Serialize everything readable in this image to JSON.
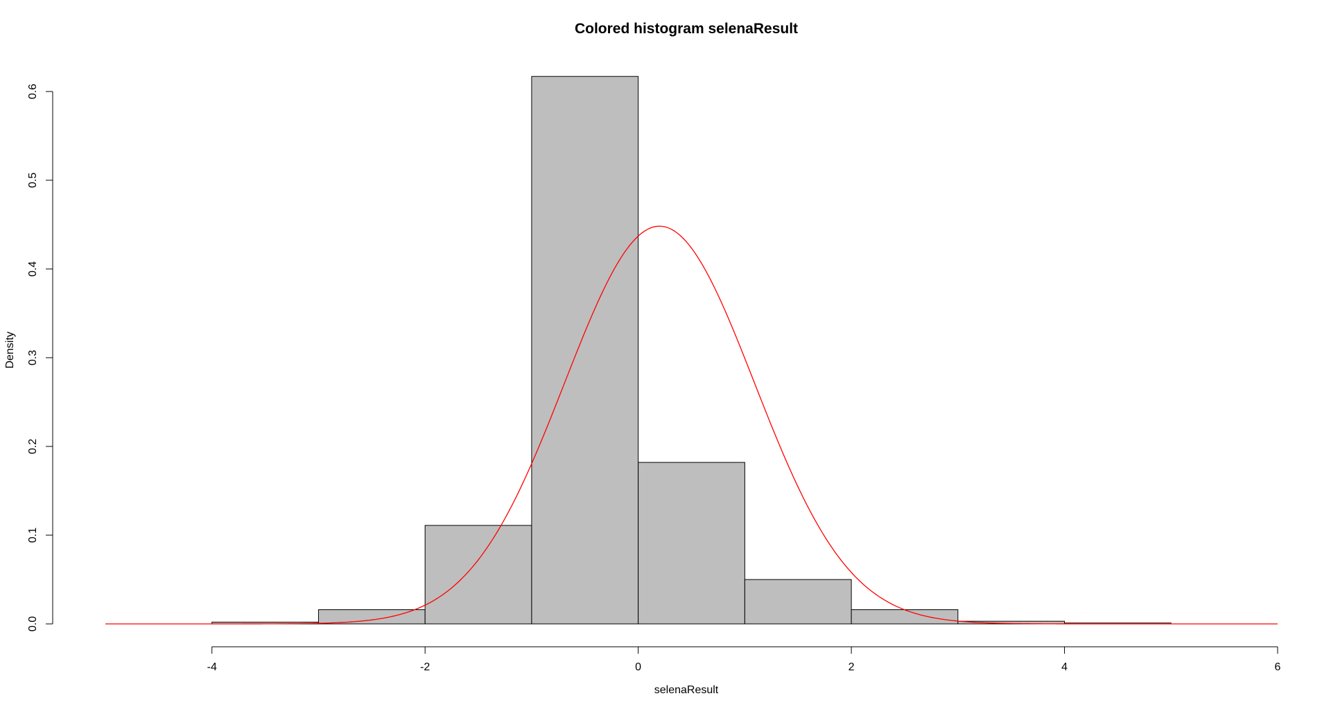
{
  "chart_data": {
    "type": "bar",
    "subtype": "histogram-with-density-curve",
    "title": "Colored histogram selenaResult",
    "xlabel": "selenaResult",
    "ylabel": "Density",
    "xlim": [
      -5,
      6
    ],
    "ylim": [
      0,
      0.62
    ],
    "x_ticks": [
      -4,
      -2,
      0,
      2,
      4,
      6
    ],
    "y_ticks": [
      0.0,
      0.1,
      0.2,
      0.3,
      0.4,
      0.5,
      0.6
    ],
    "x_tick_labels": [
      "-4",
      "-2",
      "0",
      "2",
      "4",
      "6"
    ],
    "y_tick_labels": [
      "0.0",
      "0.1",
      "0.2",
      "0.3",
      "0.4",
      "0.5",
      "0.6"
    ],
    "grid": false,
    "legend": "none",
    "bins": [
      {
        "x0": -4,
        "x1": -3,
        "density": 0.002
      },
      {
        "x0": -3,
        "x1": -2,
        "density": 0.016
      },
      {
        "x0": -2,
        "x1": -1,
        "density": 0.111
      },
      {
        "x0": -1,
        "x1": 0,
        "density": 0.617
      },
      {
        "x0": 0,
        "x1": 1,
        "density": 0.182
      },
      {
        "x0": 1,
        "x1": 2,
        "density": 0.05
      },
      {
        "x0": 2,
        "x1": 3,
        "density": 0.016
      },
      {
        "x0": 3,
        "x1": 4,
        "density": 0.003
      },
      {
        "x0": 4,
        "x1": 5,
        "density": 0.001
      }
    ],
    "curve": {
      "type": "normal-density",
      "mean": 0.2,
      "sd": 0.89,
      "x_range": [
        -5,
        6
      ]
    },
    "colors": {
      "bar_fill": "#bebebe",
      "bar_stroke": "#000000",
      "curve": "#ff0000",
      "axis": "#000000",
      "background": "#ffffff"
    }
  }
}
